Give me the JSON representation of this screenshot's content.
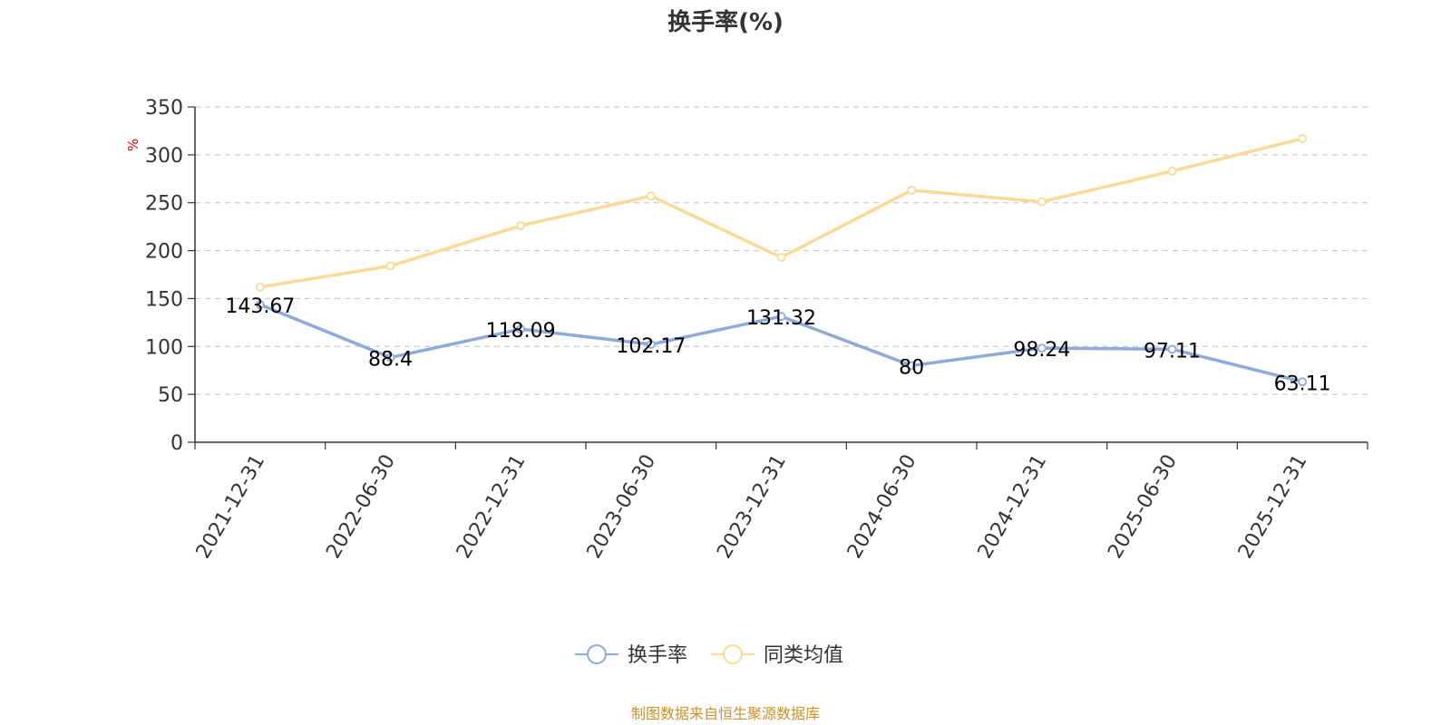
{
  "chart_data": {
    "type": "line",
    "title": "换手率(%)",
    "ylabel": "%",
    "xlabel": "",
    "ylim": [
      0,
      350
    ],
    "yticks": [
      0,
      50,
      100,
      150,
      200,
      250,
      300,
      350
    ],
    "grid": true,
    "categories": [
      "2021-12-31",
      "2022-06-30",
      "2022-12-31",
      "2023-06-30",
      "2023-12-31",
      "2024-06-30",
      "2024-12-31",
      "2025-06-30",
      "2025-12-31"
    ],
    "series": [
      {
        "name": "换手率",
        "color": "#8eaad8",
        "values": [
          143.67,
          88.4,
          118.09,
          102.17,
          131.32,
          80,
          98.24,
          97.11,
          63.11
        ],
        "labels": [
          "143.67",
          "88.4",
          "118.09",
          "102.17",
          "131.32",
          "80",
          "98.24",
          "97.11",
          "63.11"
        ],
        "show_labels": true
      },
      {
        "name": "同类均值",
        "color": "#fbd996",
        "values": [
          162,
          184,
          226,
          257,
          193,
          263,
          251,
          283,
          317
        ],
        "show_labels": false
      }
    ],
    "legend_position": "bottom-center",
    "source": "制图数据来自恒生聚源数据库"
  }
}
